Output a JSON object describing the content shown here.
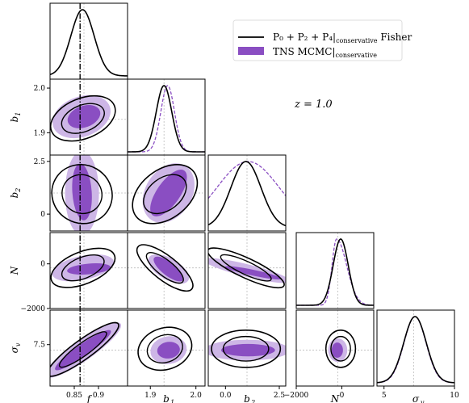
{
  "chart_data": {
    "type": "corner",
    "parameters": [
      {
        "key": "f",
        "label": "f",
        "range": [
          0.8,
          0.96
        ],
        "ticks": [
          {
            "v": 0.85,
            "t": "0.85"
          },
          {
            "v": 0.9,
            "t": "0.9"
          }
        ],
        "fiducial": 0.87
      },
      {
        "key": "b1",
        "label": "b",
        "sub": "1",
        "range": [
          1.85,
          2.02
        ],
        "ticks": [
          {
            "v": 1.9,
            "t": "1.9"
          },
          {
            "v": 2.0,
            "t": "2.0"
          }
        ],
        "fiducial": 1.93
      },
      {
        "key": "b2",
        "label": "b",
        "sub": "2",
        "range": [
          -0.8,
          2.8
        ],
        "ticks": [
          {
            "v": 0,
            "t": "0.0"
          },
          {
            "v": 2.5,
            "t": "2.5"
          }
        ],
        "y_ticks": [
          {
            "v": 0,
            "t": "0"
          },
          {
            "v": 2.5,
            "t": "2.5"
          }
        ],
        "fiducial": 1.0
      },
      {
        "key": "N",
        "label": "N",
        "range": [
          -2000,
          1400
        ],
        "ticks": [
          {
            "v": -2000,
            "t": "−2000"
          },
          {
            "v": 0,
            "t": "0"
          }
        ],
        "y_ticks": [
          {
            "v": 0,
            "t": "0"
          },
          {
            "v": -2000,
            "t": "−2000"
          }
        ],
        "fiducial": -180
      },
      {
        "key": "sv",
        "label": "σ",
        "sub": "v",
        "range": [
          4.5,
          10
        ],
        "ticks": [
          {
            "v": 5,
            "t": "5"
          },
          {
            "v": 10,
            "t": "10"
          }
        ],
        "y_ticks": [
          {
            "v": 7.5,
            "t": "7.5"
          }
        ],
        "fiducial": 7.1
      }
    ],
    "annotation": "z = 1.0",
    "legend": {
      "placement": "top-right",
      "entries": [
        {
          "label_main": "P₀ + P₂ + P₄|",
          "label_sub": "conservative",
          "label_tail": " Fisher",
          "style": "line",
          "color": "#000000"
        },
        {
          "label_main": "TNS MCMC|",
          "label_sub": "conservative",
          "label_tail": "",
          "style": "patch",
          "color": "#8a4ec2"
        }
      ]
    },
    "series": [
      {
        "name": "Fisher",
        "color": "#000000"
      },
      {
        "name": "TNS MCMC",
        "color": "#8a4ec2",
        "light_color": "#cdb6e6"
      }
    ],
    "posterior_1d": {
      "fisher": [
        {
          "mu": 0.867,
          "sigma": 0.024
        },
        {
          "mu": 1.93,
          "sigma": 0.017
        },
        {
          "mu": 0.95,
          "sigma": 0.7
        },
        {
          "mu": -50,
          "sigma": 330
        },
        {
          "mu": 7.2,
          "sigma": 0.8
        }
      ],
      "mcmc": [
        null,
        {
          "mu": 1.938,
          "sigma": 0.015
        },
        {
          "mu": 1.05,
          "sigma": 1.45
        },
        {
          "mu": -230,
          "sigma": 200,
          "skew_right": true
        },
        {
          "mu": 7.2,
          "sigma": 0.78
        }
      ]
    },
    "contours_2d": [
      {
        "x": "f",
        "y": "b1",
        "fisher": {
          "cx": 0.868,
          "cy": 1.932,
          "rx": 0.07,
          "ry": 0.045,
          "rot": -22
        },
        "mcmc_68": {
          "cx": 0.87,
          "cy": 1.936,
          "rx": 0.035,
          "ry": 0.024,
          "rot": -20
        },
        "mcmc_95": {
          "cx": 0.865,
          "cy": 1.936,
          "rx": 0.062,
          "ry": 0.045,
          "rot": -20
        }
      },
      {
        "x": "f",
        "y": "b2",
        "fisher": {
          "cx": 0.866,
          "cy": 0.95,
          "rx": 0.06,
          "ry": 1.45,
          "rot": -60
        },
        "mcmc_68": {
          "cx": 0.866,
          "cy": 1.05,
          "rx": 0.02,
          "ry": 1.35,
          "rot": -4
        },
        "mcmc_95": {
          "cx": 0.866,
          "cy": 1.0,
          "rx": 0.035,
          "ry": 2.0,
          "rot": 0
        }
      },
      {
        "x": "f",
        "y": "N",
        "fisher": {
          "cx": 0.868,
          "cy": -180,
          "rx": 0.07,
          "ry": 720,
          "rot": -22
        },
        "mcmc_68": {
          "cx": 0.88,
          "cy": -230,
          "rx": 0.045,
          "ry": 240,
          "rot": -5
        },
        "mcmc_95": {
          "cx": 0.868,
          "cy": -180,
          "rx": 0.065,
          "ry": 540,
          "rot": -12
        }
      },
      {
        "x": "f",
        "y": "sv",
        "fisher": {
          "cx": 0.868,
          "cy": 7.15,
          "rx": 0.09,
          "ry": 0.7,
          "rot": -36
        },
        "mcmc_68": {
          "cx": 0.868,
          "cy": 7.1,
          "rx": 0.07,
          "ry": 0.45,
          "rot": -35
        },
        "mcmc_95": {
          "cx": 0.868,
          "cy": 7.1,
          "rx": 0.095,
          "ry": 0.75,
          "rot": -35
        }
      },
      {
        "x": "b1",
        "y": "b2",
        "fisher": {
          "cx": 1.932,
          "cy": 0.95,
          "rx": 0.08,
          "ry": 1.15,
          "rot": -38
        },
        "mcmc_68": {
          "cx": 1.94,
          "cy": 1.0,
          "rx": 0.06,
          "ry": 0.55,
          "rot": -55
        },
        "mcmc_95": {
          "cx": 1.94,
          "cy": 1.0,
          "rx": 0.07,
          "ry": 1.1,
          "rot": -58
        }
      },
      {
        "x": "b1",
        "y": "N",
        "fisher": {
          "cx": 1.932,
          "cy": -180,
          "rx": 0.075,
          "ry": 540,
          "rot": 38
        },
        "mcmc_68": {
          "cx": 1.94,
          "cy": -230,
          "rx": 0.04,
          "ry": 300,
          "rot": 38
        },
        "mcmc_95": {
          "cx": 1.94,
          "cy": -230,
          "rx": 0.05,
          "ry": 480,
          "rot": 30
        }
      },
      {
        "x": "b1",
        "y": "sv",
        "fisher": {
          "cx": 1.932,
          "cy": 7.2,
          "rx": 0.06,
          "ry": 1.5,
          "rot": -18
        },
        "mcmc_68": {
          "cx": 1.94,
          "cy": 7.1,
          "rx": 0.025,
          "ry": 0.6,
          "rot": -8
        },
        "mcmc_95": {
          "cx": 1.94,
          "cy": 7.1,
          "rx": 0.04,
          "ry": 1.0,
          "rot": -10
        }
      },
      {
        "x": "b2",
        "y": "N",
        "fisher": {
          "cx": 0.95,
          "cy": -180,
          "rx": 1.95,
          "ry": 440,
          "rot": 25
        },
        "mcmc_68": {
          "cx": 1.3,
          "cy": -400,
          "rx": 1.35,
          "ry": 130,
          "rot": 12
        },
        "mcmc_95": {
          "cx": 1.0,
          "cy": -300,
          "rx": 2.1,
          "ry": 280,
          "rot": 14
        }
      },
      {
        "x": "b2",
        "y": "sv",
        "fisher": {
          "cx": 0.95,
          "cy": 7.2,
          "rx": 1.6,
          "ry": 1.35,
          "rot": 0
        },
        "mcmc_68": {
          "cx": 1.05,
          "cy": 7.1,
          "rx": 1.25,
          "ry": 0.45,
          "rot": 0
        },
        "mcmc_95": {
          "cx": 1.0,
          "cy": 7.1,
          "rx": 2.0,
          "ry": 0.75,
          "rot": 0
        }
      },
      {
        "x": "N",
        "y": "sv",
        "fisher": {
          "cx": -50,
          "cy": 7.2,
          "rx": 650,
          "ry": 1.35,
          "rot": 0
        },
        "mcmc_68": {
          "cx": -200,
          "cy": 7.1,
          "rx": 250,
          "ry": 0.55,
          "rot": 0
        },
        "mcmc_95": {
          "cx": -180,
          "cy": 7.1,
          "rx": 420,
          "ry": 0.85,
          "rot": 0
        }
      }
    ]
  }
}
